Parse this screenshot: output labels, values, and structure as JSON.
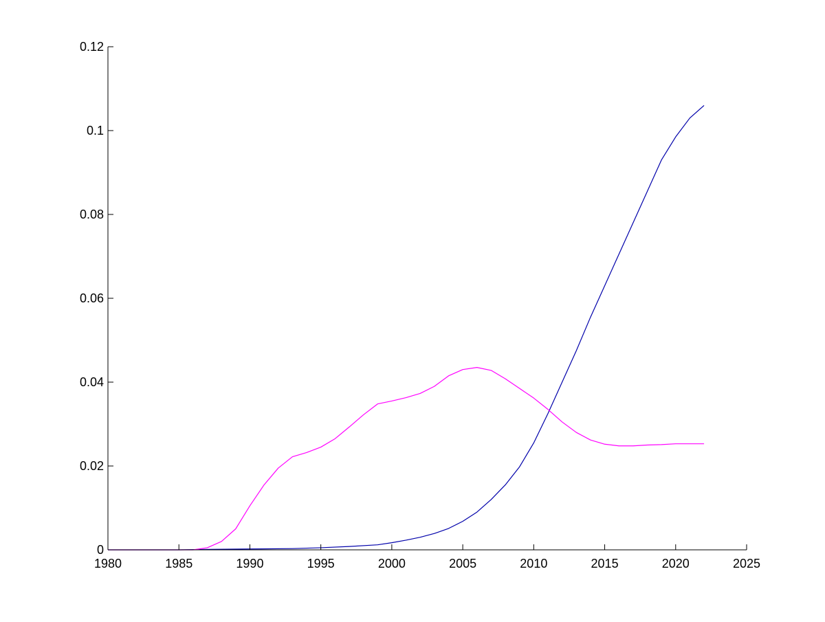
{
  "chart_data": {
    "type": "line",
    "title": "",
    "xlabel": "",
    "ylabel": "",
    "xlim": [
      1980,
      2025
    ],
    "ylim": [
      0,
      0.12
    ],
    "x_ticks": [
      1980,
      1985,
      1990,
      1995,
      2000,
      2005,
      2010,
      2015,
      2020,
      2025
    ],
    "x_tick_labels": [
      "1980",
      "1985",
      "1990",
      "1995",
      "2000",
      "2005",
      "2010",
      "2015",
      "2020",
      "2025"
    ],
    "y_ticks": [
      0,
      0.02,
      0.04,
      0.06,
      0.08,
      0.1,
      0.12
    ],
    "y_tick_labels": [
      "0",
      "0.02",
      "0.04",
      "0.06",
      "0.08",
      "0.1",
      "0.12"
    ],
    "grid": false,
    "legend": "none",
    "series": [
      {
        "color": "#0000aa",
        "x": [
          1980,
          1985,
          1987,
          1990,
          1993,
          1995,
          1997,
          1999,
          2000,
          2001,
          2002,
          2003,
          2004,
          2005,
          2006,
          2007,
          2008,
          2009,
          2010,
          2011,
          2012,
          2013,
          2014,
          2015,
          2016,
          2017,
          2018,
          2019,
          2020,
          2021,
          2022
        ],
        "values": [
          0.0,
          0.0,
          0.0001,
          0.0002,
          0.0003,
          0.0005,
          0.0008,
          0.0012,
          0.0017,
          0.0023,
          0.003,
          0.0039,
          0.0051,
          0.0068,
          0.009,
          0.012,
          0.0155,
          0.0198,
          0.0255,
          0.0325,
          0.04,
          0.0475,
          0.0555,
          0.063,
          0.0705,
          0.078,
          0.0855,
          0.093,
          0.0985,
          0.103,
          0.106
        ]
      },
      {
        "color": "#ff00ff",
        "x": [
          1980,
          1986,
          1987,
          1988,
          1989,
          1990,
          1991,
          1992,
          1993,
          1994,
          1995,
          1996,
          1997,
          1998,
          1999,
          2000,
          2001,
          2002,
          2003,
          2004,
          2005,
          2006,
          2007,
          2008,
          2009,
          2010,
          2011,
          2012,
          2013,
          2014,
          2015,
          2016,
          2017,
          2018,
          2019,
          2020,
          2021,
          2022
        ],
        "values": [
          0.0,
          0.0,
          0.0005,
          0.002,
          0.005,
          0.0105,
          0.0155,
          0.0195,
          0.0222,
          0.0232,
          0.0245,
          0.0265,
          0.0293,
          0.0322,
          0.0348,
          0.0355,
          0.0363,
          0.0373,
          0.039,
          0.0415,
          0.043,
          0.0435,
          0.0428,
          0.0408,
          0.0385,
          0.0362,
          0.0335,
          0.0305,
          0.028,
          0.0262,
          0.0252,
          0.0248,
          0.0248,
          0.025,
          0.0251,
          0.0253,
          0.0253,
          0.0253
        ]
      }
    ]
  }
}
